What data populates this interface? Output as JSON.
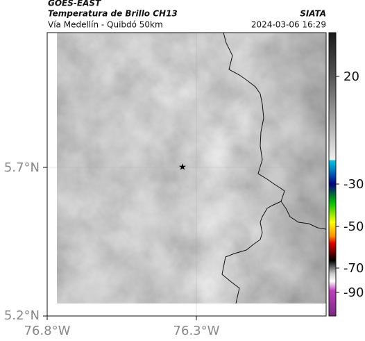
{
  "header": {
    "title": "GOES-EAST",
    "subtitle": "Temperatura de Brillo CH13",
    "route": "Vía Medellín - Quibdó 50km",
    "source": "SIATA",
    "timestamp": "2024-03-06 16:29"
  },
  "map": {
    "lat_labels": [
      "5.7°N",
      "5.2°N"
    ],
    "lon_labels": [
      "76.8°W",
      "76.3°W"
    ]
  },
  "colorbar": {
    "tick_labels": [
      "20",
      "-30",
      "-50",
      "-70",
      "-90"
    ]
  }
}
